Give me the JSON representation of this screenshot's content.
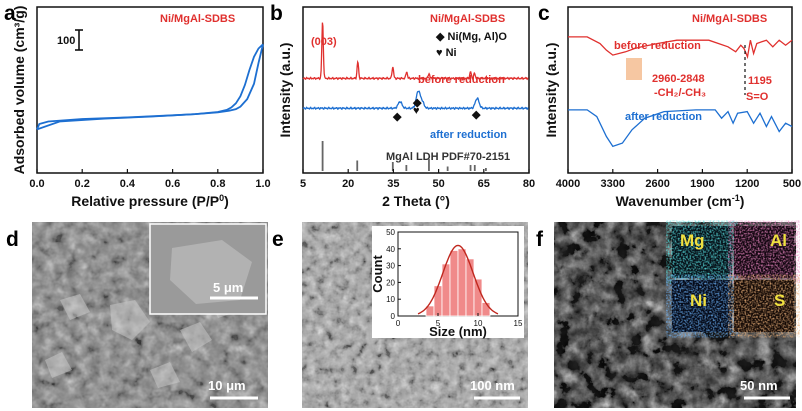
{
  "figure": {
    "panel_labels": [
      "a",
      "b",
      "c",
      "d",
      "e",
      "f"
    ]
  },
  "panel_a": {
    "sample": "Ni/MgAl-SDBS",
    "ylabel": "Adsorbed volume (cm³/g)",
    "xlabel_main": "Relative pressure (P/P",
    "xlabel_sup": "0",
    "xlabel_end": ")",
    "scale_bar_label": "100",
    "xticks": [
      "0.0",
      "0.2",
      "0.4",
      "0.6",
      "0.8",
      "1.0"
    ]
  },
  "panel_b": {
    "sample": "Ni/MgAl-SDBS",
    "ylabel": "Intensity (a.u.)",
    "xlabel": "2 Theta (°)",
    "xticks": [
      "5",
      "20",
      "35",
      "50",
      "65",
      "80"
    ],
    "peak_label": "(003)",
    "legend": [
      "◆ Ni(Mg, Al)O",
      "♥ Ni"
    ],
    "before_label": "before reduction",
    "after_label": "after reduction",
    "reference_label": "MgAl LDH PDF#70-2151"
  },
  "panel_c": {
    "sample": "Ni/MgAl-SDBS",
    "ylabel": "Intensity (a.u.)",
    "xlabel_main": "Wavenumber (cm",
    "xlabel_sup": "-1",
    "xlabel_end": ")",
    "xticks": [
      "4000",
      "3300",
      "2600",
      "1900",
      "1200",
      "500"
    ],
    "before_label": "before reduction",
    "after_label": "after reduction",
    "band1_range": "2960-2848",
    "band1_group": "-CH₂/-CH₃",
    "band2_value": "1195",
    "band2_group": "S=O"
  },
  "panel_d": {
    "inset_scale": "5 μm",
    "main_scale": "10 μm"
  },
  "panel_e": {
    "scale": "100 nm",
    "hist_ylabel": "Count",
    "hist_xlabel": "Size (nm)",
    "hist_xticks": [
      "0",
      "5",
      "10",
      "15"
    ],
    "hist_yticks": [
      "0",
      "10",
      "20",
      "30",
      "40",
      "50"
    ]
  },
  "panel_f": {
    "scale": "50 nm",
    "maps": [
      "Mg",
      "Al",
      "Ni",
      "S"
    ]
  },
  "chart_data": [
    {
      "panel": "a",
      "type": "line",
      "title": "Ni/MgAl-SDBS",
      "xlabel": "Relative pressure (P/P0)",
      "ylabel": "Adsorbed volume (cm3/g)",
      "xlim": [
        0,
        1.0
      ],
      "ylim": [
        0,
        400
      ],
      "scale_bar": 100,
      "series": [
        {
          "name": "adsorption",
          "x": [
            0.0,
            0.01,
            0.05,
            0.2,
            0.4,
            0.6,
            0.7,
            0.8,
            0.85,
            0.88,
            0.9,
            0.93,
            0.96,
            0.98,
            1.0
          ],
          "y": [
            105,
            118,
            124,
            130,
            134,
            139,
            142,
            146,
            150,
            154,
            160,
            178,
            215,
            265,
            310
          ]
        },
        {
          "name": "desorption",
          "x": [
            1.0,
            0.98,
            0.96,
            0.94,
            0.92,
            0.9,
            0.88,
            0.86,
            0.84,
            0.8,
            0.7,
            0.5,
            0.3,
            0.1,
            0.0
          ],
          "y": [
            310,
            300,
            280,
            248,
            212,
            185,
            168,
            158,
            152,
            147,
            142,
            136,
            131,
            124,
            105
          ]
        }
      ]
    },
    {
      "panel": "b",
      "type": "line",
      "title": "Ni/MgAl-SDBS",
      "xlabel": "2 Theta (°)",
      "ylabel": "Intensity (a.u.)",
      "xlim": [
        5,
        80
      ],
      "ylim": [
        0,
        100
      ],
      "series": [
        {
          "name": "before reduction",
          "peaks": [
            {
              "x": 11.5,
              "h": 34
            },
            {
              "x": 23.2,
              "h": 10
            },
            {
              "x": 34.8,
              "h": 7
            },
            {
              "x": 39.4,
              "h": 4
            },
            {
              "x": 46.8,
              "h": 3
            },
            {
              "x": 60.6,
              "h": 4
            },
            {
              "x": 61.9,
              "h": 3
            }
          ],
          "baseline": 57
        },
        {
          "name": "after reduction",
          "peaks": [
            {
              "x": 37.2,
              "h": 4
            },
            {
              "x": 43.2,
              "h": 10
            },
            {
              "x": 44.5,
              "h": 4
            },
            {
              "x": 62.8,
              "h": 6
            }
          ],
          "baseline": 39
        }
      ],
      "reference": {
        "name": "MgAl LDH PDF#70-2151",
        "lines": [
          {
            "x": 11.5,
            "h": 1.0
          },
          {
            "x": 23.0,
            "h": 0.35
          },
          {
            "x": 34.8,
            "h": 0.3
          },
          {
            "x": 39.3,
            "h": 0.2
          },
          {
            "x": 46.8,
            "h": 0.4
          },
          {
            "x": 53.0,
            "h": 0.15
          },
          {
            "x": 60.6,
            "h": 0.2
          },
          {
            "x": 62.0,
            "h": 0.2
          },
          {
            "x": 65.7,
            "h": 0.1
          }
        ]
      }
    },
    {
      "panel": "c",
      "type": "line",
      "title": "Ni/MgAl-SDBS",
      "xlabel": "Wavenumber (cm-1)",
      "ylabel": "Intensity (a.u.)",
      "xlim": [
        4000,
        500
      ],
      "annotations": [
        "2960-2848 -CH2/-CH3",
        "1195 S=O"
      ],
      "series": [
        {
          "name": "before reduction",
          "points": [
            [
              4000,
              82
            ],
            [
              3700,
              82
            ],
            [
              3500,
              78
            ],
            [
              3400,
              74
            ],
            [
              3300,
              71
            ],
            [
              3100,
              73
            ],
            [
              2960,
              75
            ],
            [
              2848,
              76
            ],
            [
              2600,
              78
            ],
            [
              2300,
              80
            ],
            [
              2000,
              80
            ],
            [
              1800,
              80
            ],
            [
              1650,
              78
            ],
            [
              1500,
              76
            ],
            [
              1380,
              73
            ],
            [
              1300,
              77
            ],
            [
              1250,
              75
            ],
            [
              1195,
              70
            ],
            [
              1150,
              80
            ],
            [
              1100,
              72
            ],
            [
              1050,
              78
            ],
            [
              900,
              80
            ],
            [
              800,
              76
            ],
            [
              700,
              80
            ],
            [
              600,
              77
            ],
            [
              500,
              80
            ]
          ]
        },
        {
          "name": "after reduction",
          "points": [
            [
              4000,
              38
            ],
            [
              3700,
              38
            ],
            [
              3550,
              34
            ],
            [
              3400,
              22
            ],
            [
              3300,
              16
            ],
            [
              3150,
              18
            ],
            [
              3000,
              26
            ],
            [
              2800,
              33
            ],
            [
              2500,
              37
            ],
            [
              2000,
              38
            ],
            [
              1700,
              38
            ],
            [
              1600,
              33
            ],
            [
              1500,
              37
            ],
            [
              1420,
              30
            ],
            [
              1350,
              36
            ],
            [
              1200,
              37
            ],
            [
              1100,
              30
            ],
            [
              1000,
              36
            ],
            [
              900,
              28
            ],
            [
              820,
              34
            ],
            [
              700,
              25
            ],
            [
              600,
              30
            ],
            [
              500,
              28
            ]
          ]
        }
      ]
    },
    {
      "panel": "e",
      "type": "bar",
      "title": "Size distribution",
      "xlabel": "Size (nm)",
      "ylabel": "Count",
      "xlim": [
        0,
        15
      ],
      "ylim": [
        0,
        50
      ],
      "categories": [
        "4",
        "5",
        "6",
        "7",
        "8",
        "9",
        "10",
        "11"
      ],
      "values": [
        6,
        18,
        31,
        39,
        40,
        34,
        22,
        8
      ],
      "fit": {
        "type": "gaussian",
        "mean": 7.5,
        "sigma": 1.9,
        "peak": 42
      }
    }
  ]
}
